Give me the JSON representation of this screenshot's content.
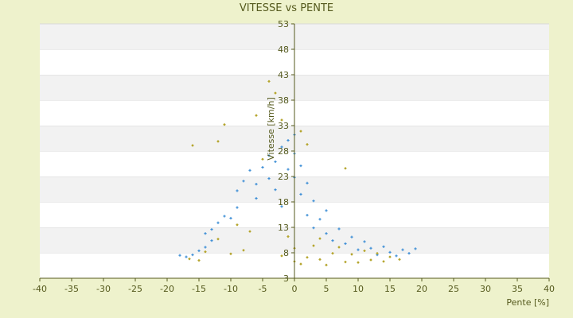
{
  "chart_data": {
    "type": "scatter",
    "title": "VITESSE vs PENTE",
    "xlabel": "Pente [%]",
    "ylabel": "Vitesse [km/h]",
    "xlim": [
      -40,
      40
    ],
    "ylim": [
      3,
      53
    ],
    "x_ticks": [
      -40,
      -35,
      -30,
      -25,
      -20,
      -15,
      -10,
      -5,
      0,
      5,
      10,
      15,
      20,
      25,
      30,
      35,
      40
    ],
    "y_ticks": [
      3,
      8,
      13,
      18,
      23,
      28,
      33,
      38,
      43,
      48,
      53
    ],
    "grid": "horizontal bands",
    "legend": "none",
    "series": [
      {
        "color": "#3f8fd6",
        "shape": "cross",
        "points": [
          [
            -18,
            7.5
          ],
          [
            -17,
            7.2
          ],
          [
            -16,
            7.6
          ],
          [
            -15,
            8.4
          ],
          [
            -14,
            9.1
          ],
          [
            -14,
            11.8
          ],
          [
            -13,
            12.6
          ],
          [
            -13,
            10.4
          ],
          [
            -12,
            13.9
          ],
          [
            -11,
            15.2
          ],
          [
            -10,
            14.8
          ],
          [
            -9,
            16.9
          ],
          [
            -9,
            20.2
          ],
          [
            -8,
            22.1
          ],
          [
            -7,
            24.2
          ],
          [
            -6,
            18.7
          ],
          [
            -6,
            21.5
          ],
          [
            -5,
            24.8
          ],
          [
            -4,
            22.6
          ],
          [
            -4,
            27.1
          ],
          [
            -3,
            20.4
          ],
          [
            -3,
            25.9
          ],
          [
            -2,
            28.8
          ],
          [
            -2,
            17.1
          ],
          [
            -1,
            24.4
          ],
          [
            -1,
            30.1
          ],
          [
            0,
            22.8
          ],
          [
            0,
            27.5
          ],
          [
            0,
            31.2
          ],
          [
            1,
            19.5
          ],
          [
            1,
            25.1
          ],
          [
            2,
            21.7
          ],
          [
            2,
            15.4
          ],
          [
            3,
            18.2
          ],
          [
            3,
            12.9
          ],
          [
            4,
            14.6
          ],
          [
            5,
            11.8
          ],
          [
            5,
            16.3
          ],
          [
            6,
            10.4
          ],
          [
            7,
            12.7
          ],
          [
            8,
            9.8
          ],
          [
            9,
            11.1
          ],
          [
            10,
            8.6
          ],
          [
            11,
            10.2
          ],
          [
            12,
            8.9
          ],
          [
            13,
            7.6
          ],
          [
            14,
            9.2
          ],
          [
            15,
            8.1
          ],
          [
            16,
            7.4
          ],
          [
            17,
            8.6
          ],
          [
            18,
            7.9
          ],
          [
            19,
            8.8
          ]
        ]
      },
      {
        "color": "#b5a52d",
        "shape": "diamond",
        "points": [
          [
            -16.5,
            6.8
          ],
          [
            -15,
            6.5
          ],
          [
            -14,
            8.2
          ],
          [
            -12,
            10.7
          ],
          [
            -10,
            7.8
          ],
          [
            -9,
            13.5
          ],
          [
            -8,
            8.5
          ],
          [
            -7,
            12.2
          ],
          [
            -6,
            35.0
          ],
          [
            -5,
            26.4
          ],
          [
            -4,
            41.7
          ],
          [
            -3,
            39.4
          ],
          [
            -2,
            34.1
          ],
          [
            -2,
            7.4
          ],
          [
            -1,
            11.2
          ],
          [
            0,
            6.3
          ],
          [
            0,
            8.9
          ],
          [
            1,
            5.8
          ],
          [
            1,
            31.9
          ],
          [
            2,
            7.1
          ],
          [
            2,
            29.3
          ],
          [
            3,
            9.4
          ],
          [
            4,
            6.7
          ],
          [
            4,
            10.8
          ],
          [
            5,
            5.6
          ],
          [
            6,
            7.9
          ],
          [
            7,
            9.1
          ],
          [
            8,
            24.6
          ],
          [
            8,
            6.2
          ],
          [
            9,
            7.7
          ],
          [
            10,
            6.1
          ],
          [
            11,
            8.4
          ],
          [
            12,
            6.6
          ],
          [
            13,
            7.9
          ],
          [
            14,
            6.3
          ],
          [
            15,
            7.2
          ],
          [
            16.5,
            6.7
          ],
          [
            -16,
            29.1
          ],
          [
            -12,
            29.9
          ],
          [
            -11,
            33.2
          ]
        ]
      }
    ]
  }
}
